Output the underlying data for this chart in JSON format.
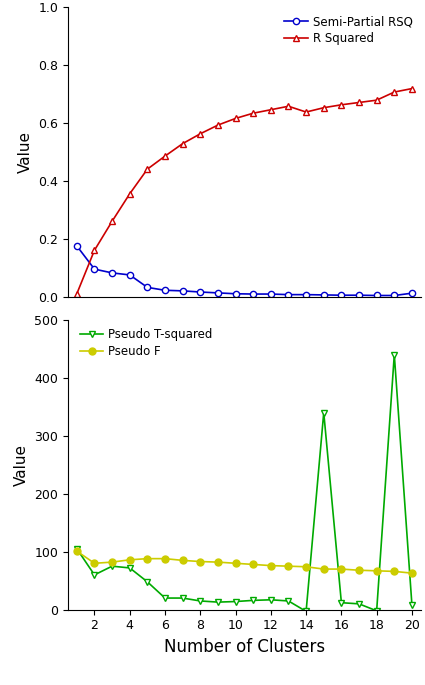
{
  "clusters": [
    1,
    2,
    3,
    4,
    5,
    6,
    7,
    8,
    9,
    10,
    11,
    12,
    13,
    14,
    15,
    16,
    17,
    18,
    19,
    20
  ],
  "semi_partial_rsq": [
    0.175,
    0.095,
    0.082,
    0.075,
    0.032,
    0.022,
    0.02,
    0.016,
    0.013,
    0.01,
    0.009,
    0.009,
    0.007,
    0.007,
    0.006,
    0.005,
    0.005,
    0.004,
    0.004,
    0.012
  ],
  "r_squared": [
    0.01,
    0.16,
    0.26,
    0.355,
    0.44,
    0.485,
    0.528,
    0.562,
    0.592,
    0.615,
    0.633,
    0.645,
    0.657,
    0.637,
    0.652,
    0.662,
    0.67,
    0.678,
    0.706,
    0.718
  ],
  "pseudo_t": [
    105,
    60,
    75,
    72,
    48,
    20,
    20,
    15,
    13,
    14,
    16,
    17,
    15,
    -3,
    340,
    12,
    10,
    -2,
    440,
    8
  ],
  "pseudo_f": [
    101,
    80,
    82,
    86,
    88,
    88,
    85,
    83,
    82,
    80,
    78,
    76,
    75,
    74,
    70,
    70,
    68,
    67,
    66,
    63
  ],
  "color_blue": "#0000CC",
  "color_red": "#CC0000",
  "color_green": "#00AA00",
  "color_yellow": "#CCCC00",
  "ylabel": "Value",
  "xlabel": "Number of Clusters",
  "legend1": [
    "Semi-Partial RSQ",
    "R Squared"
  ],
  "legend2": [
    "Pseudo T-squared",
    "Pseudo F"
  ],
  "ylim1": [
    0.0,
    1.0
  ],
  "yticks1": [
    0.0,
    0.2,
    0.4,
    0.6,
    0.8,
    1.0
  ],
  "ylim2_min": 0,
  "ylim2_max": 500,
  "yticks2": [
    0,
    100,
    200,
    300,
    400,
    500
  ],
  "xticks": [
    2,
    4,
    6,
    8,
    10,
    12,
    14,
    16,
    18,
    20
  ]
}
